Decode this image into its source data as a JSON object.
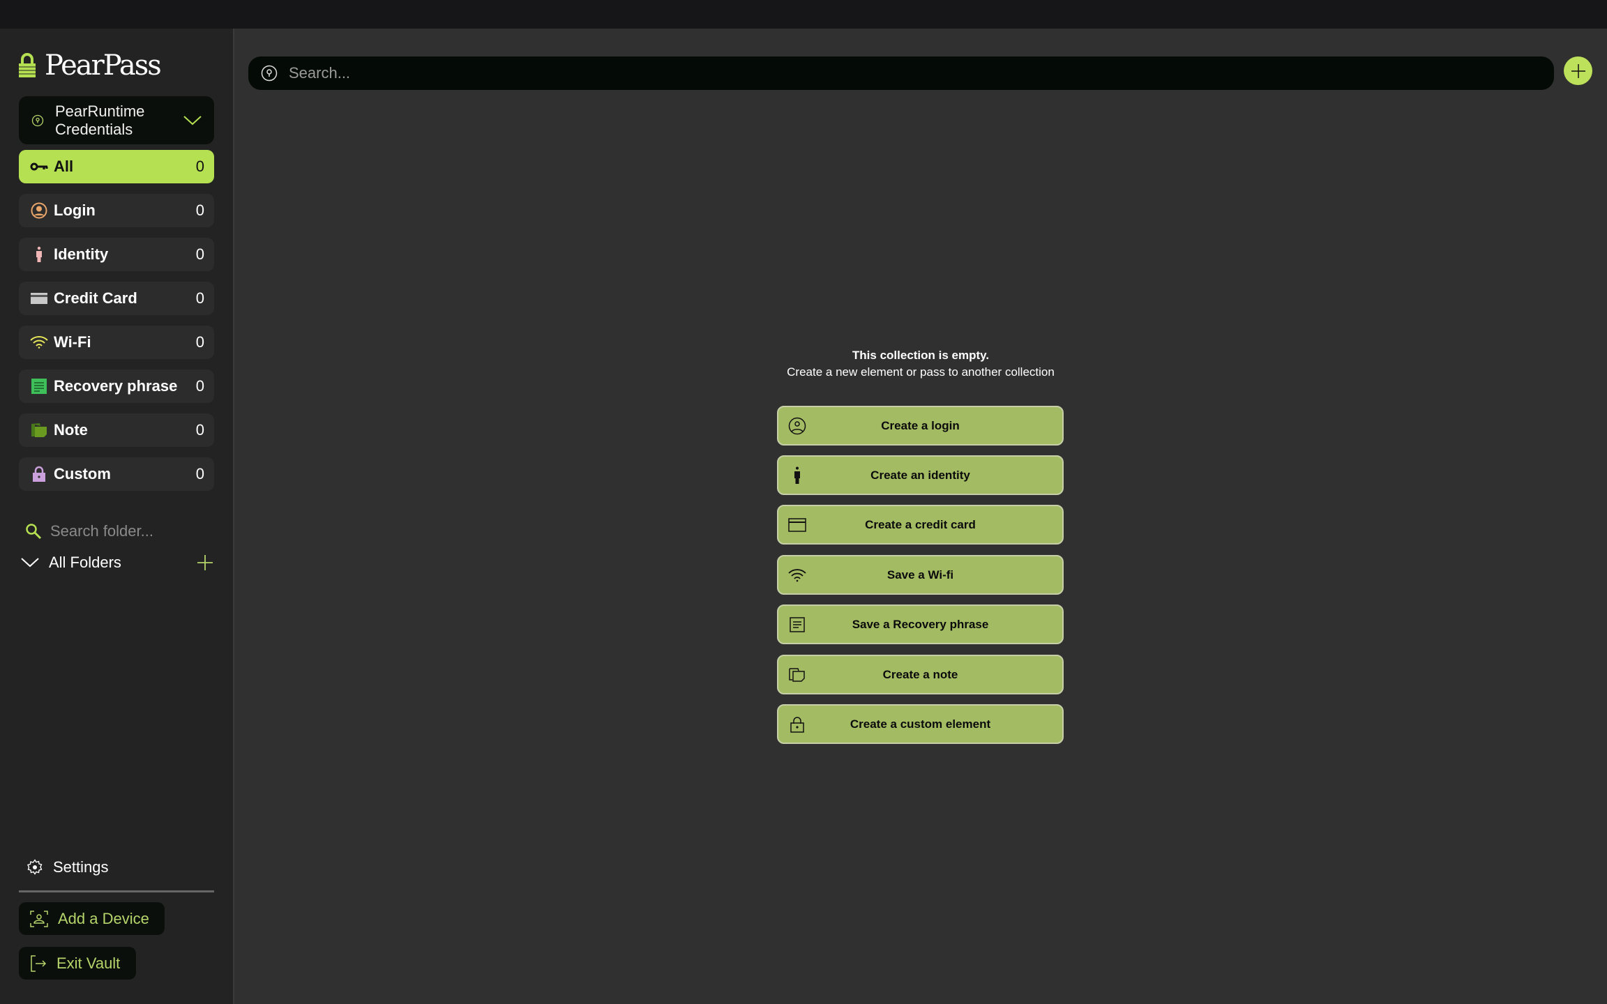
{
  "app": {
    "name": "PearPass"
  },
  "vault": {
    "name": "PearRuntime Credentials"
  },
  "nav": [
    {
      "label": "All",
      "count": "0",
      "icon": "key-icon",
      "active": true
    },
    {
      "label": "Login",
      "count": "0",
      "icon": "user-circle-icon"
    },
    {
      "label": "Identity",
      "count": "0",
      "icon": "person-icon"
    },
    {
      "label": "Credit Card",
      "count": "0",
      "icon": "credit-card-icon"
    },
    {
      "label": "Wi-Fi",
      "count": "0",
      "icon": "wifi-icon"
    },
    {
      "label": "Recovery phrase",
      "count": "0",
      "icon": "document-icon"
    },
    {
      "label": "Note",
      "count": "0",
      "icon": "note-icon"
    },
    {
      "label": "Custom",
      "count": "0",
      "icon": "lock-icon"
    }
  ],
  "folders": {
    "search_placeholder": "Search folder...",
    "all_label": "All Folders"
  },
  "footer": {
    "settings": "Settings",
    "add_device": "Add a Device",
    "exit_vault": "Exit Vault"
  },
  "search": {
    "placeholder": "Search..."
  },
  "empty": {
    "title": "This collection is empty.",
    "subtitle": "Create a new element or pass to another collection"
  },
  "actions": [
    {
      "label": "Create a login",
      "icon": "user-circle-icon"
    },
    {
      "label": "Create an identity",
      "icon": "person-icon"
    },
    {
      "label": "Create a credit card",
      "icon": "credit-card-icon"
    },
    {
      "label": "Save a Wi-fi",
      "icon": "wifi-icon"
    },
    {
      "label": "Save a Recovery phrase",
      "icon": "document-icon"
    },
    {
      "label": "Create a note",
      "icon": "note-icon"
    },
    {
      "label": "Create a custom element",
      "icon": "lock-icon"
    }
  ],
  "colors": {
    "accent": "#b5e051",
    "action_button": "#a3bb63",
    "sidebar": "#232323",
    "main": "#303030"
  }
}
